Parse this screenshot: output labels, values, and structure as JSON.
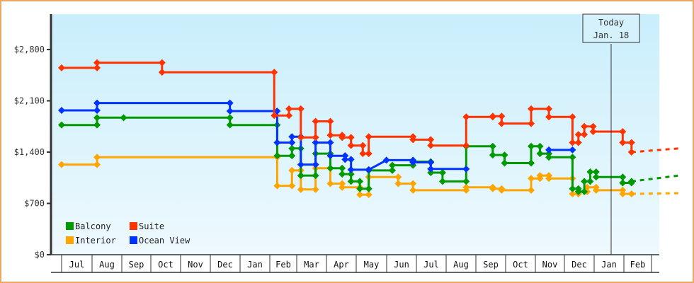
{
  "chart_data": {
    "type": "line",
    "title": "",
    "xlabel": "",
    "ylabel": "",
    "ylim": [
      0,
      3300
    ],
    "y_ticks": [
      "$0",
      "$700",
      "$1,400",
      "$2,100",
      "$2,800"
    ],
    "y_tick_values": [
      0,
      700,
      1400,
      2100,
      2800
    ],
    "x_ticks": [
      "Jul",
      "Aug",
      "Sep",
      "Oct",
      "Nov",
      "Dec",
      "Jan",
      "Feb",
      "Mar",
      "Apr",
      "May",
      "Jun",
      "Jul",
      "Aug",
      "Sep",
      "Oct",
      "Nov",
      "Dec",
      "Jan",
      "Feb"
    ],
    "grid": false,
    "legend_position": "bottom-left inside",
    "annotation": {
      "line1": "Today",
      "line2": "Jan. 18"
    },
    "step": true,
    "series": [
      {
        "name": "Balcony",
        "color": "#009900",
        "points": [
          [
            0,
            1770
          ],
          [
            1.2,
            1770
          ],
          [
            1.2,
            1870
          ],
          [
            2.1,
            1870
          ],
          [
            5.7,
            1870
          ],
          [
            5.7,
            1770
          ],
          [
            7.3,
            1770
          ],
          [
            7.3,
            1350
          ],
          [
            7.8,
            1350
          ],
          [
            7.8,
            1450
          ],
          [
            8.1,
            1450
          ],
          [
            8.1,
            1080
          ],
          [
            8.6,
            1080
          ],
          [
            8.6,
            1380
          ],
          [
            9.1,
            1380
          ],
          [
            9.1,
            1180
          ],
          [
            9.5,
            1180
          ],
          [
            9.5,
            1100
          ],
          [
            9.8,
            1100
          ],
          [
            9.8,
            1000
          ],
          [
            10.1,
            1000
          ],
          [
            10.1,
            900
          ],
          [
            10.4,
            900
          ],
          [
            10.4,
            1150
          ],
          [
            11.2,
            1150
          ],
          [
            11.2,
            1220
          ],
          [
            11.9,
            1220
          ],
          [
            11.9,
            1270
          ],
          [
            12.5,
            1270
          ],
          [
            12.5,
            1120
          ],
          [
            12.9,
            1120
          ],
          [
            12.9,
            1000
          ],
          [
            13.7,
            1000
          ],
          [
            13.7,
            1480
          ],
          [
            14.6,
            1480
          ],
          [
            14.6,
            1360
          ],
          [
            15.0,
            1360
          ],
          [
            15.0,
            1250
          ],
          [
            15.9,
            1250
          ],
          [
            15.9,
            1480
          ],
          [
            16.2,
            1480
          ],
          [
            16.2,
            1380
          ],
          [
            16.5,
            1380
          ],
          [
            16.5,
            1330
          ],
          [
            17.3,
            1330
          ],
          [
            17.3,
            900
          ],
          [
            17.5,
            900
          ],
          [
            17.5,
            860
          ],
          [
            17.7,
            860
          ],
          [
            17.7,
            1000
          ],
          [
            17.9,
            1000
          ],
          [
            17.9,
            1130
          ],
          [
            18.1,
            1130
          ],
          [
            18.1,
            1060
          ],
          [
            19.0,
            1060
          ],
          [
            19.0,
            980
          ],
          [
            19.3,
            980
          ],
          [
            19.3,
            1000
          ]
        ],
        "forecast": [
          [
            19.3,
            1000
          ],
          [
            20.9,
            1080
          ]
        ]
      },
      {
        "name": "Interior",
        "color": "#ffa500",
        "points": [
          [
            0,
            1230
          ],
          [
            1.2,
            1230
          ],
          [
            1.2,
            1330
          ],
          [
            7.3,
            1330
          ],
          [
            7.3,
            940
          ],
          [
            7.8,
            940
          ],
          [
            7.8,
            1150
          ],
          [
            8.1,
            1150
          ],
          [
            8.1,
            890
          ],
          [
            8.6,
            890
          ],
          [
            8.6,
            1180
          ],
          [
            9.1,
            1180
          ],
          [
            9.1,
            970
          ],
          [
            9.5,
            970
          ],
          [
            9.5,
            920
          ],
          [
            10.1,
            920
          ],
          [
            10.1,
            820
          ],
          [
            10.4,
            820
          ],
          [
            10.4,
            1060
          ],
          [
            11.4,
            1060
          ],
          [
            11.4,
            970
          ],
          [
            11.9,
            970
          ],
          [
            11.9,
            880
          ],
          [
            13.7,
            880
          ],
          [
            13.7,
            920
          ],
          [
            14.6,
            920
          ],
          [
            14.6,
            900
          ],
          [
            14.9,
            900
          ],
          [
            14.9,
            880
          ],
          [
            15.9,
            880
          ],
          [
            15.9,
            1040
          ],
          [
            16.2,
            1040
          ],
          [
            16.2,
            1080
          ],
          [
            16.5,
            1080
          ],
          [
            16.5,
            1040
          ],
          [
            17.3,
            1040
          ],
          [
            17.3,
            830
          ],
          [
            17.5,
            830
          ],
          [
            17.5,
            860
          ],
          [
            17.8,
            860
          ],
          [
            17.8,
            920
          ],
          [
            18.1,
            920
          ],
          [
            18.1,
            880
          ],
          [
            19.0,
            880
          ],
          [
            19.0,
            830
          ],
          [
            19.3,
            830
          ]
        ],
        "forecast": [
          [
            19.3,
            830
          ],
          [
            20.9,
            840
          ]
        ]
      },
      {
        "name": "Suite",
        "color": "#ff3300",
        "points": [
          [
            0,
            2550
          ],
          [
            1.2,
            2550
          ],
          [
            1.2,
            2620
          ],
          [
            3.4,
            2620
          ],
          [
            3.4,
            2490
          ],
          [
            7.2,
            2490
          ],
          [
            7.2,
            1900
          ],
          [
            7.7,
            1900
          ],
          [
            7.7,
            1990
          ],
          [
            8.1,
            1990
          ],
          [
            8.1,
            1600
          ],
          [
            8.6,
            1600
          ],
          [
            8.6,
            1820
          ],
          [
            9.1,
            1820
          ],
          [
            9.1,
            1630
          ],
          [
            9.5,
            1630
          ],
          [
            9.5,
            1600
          ],
          [
            9.8,
            1600
          ],
          [
            9.8,
            1490
          ],
          [
            10.2,
            1490
          ],
          [
            10.2,
            1380
          ],
          [
            10.4,
            1380
          ],
          [
            10.4,
            1610
          ],
          [
            11.9,
            1610
          ],
          [
            11.9,
            1570
          ],
          [
            12.5,
            1570
          ],
          [
            12.5,
            1490
          ],
          [
            13.7,
            1490
          ],
          [
            13.7,
            1880
          ],
          [
            14.6,
            1880
          ],
          [
            14.6,
            1890
          ],
          [
            14.9,
            1890
          ],
          [
            14.9,
            1790
          ],
          [
            15.9,
            1790
          ],
          [
            15.9,
            1990
          ],
          [
            16.5,
            1990
          ],
          [
            16.5,
            1880
          ],
          [
            17.3,
            1880
          ],
          [
            17.3,
            1530
          ],
          [
            17.5,
            1530
          ],
          [
            17.5,
            1640
          ],
          [
            17.7,
            1640
          ],
          [
            17.7,
            1750
          ],
          [
            18.0,
            1750
          ],
          [
            18.0,
            1680
          ],
          [
            19.0,
            1680
          ],
          [
            19.0,
            1530
          ],
          [
            19.3,
            1530
          ],
          [
            19.3,
            1400
          ]
        ],
        "forecast": [
          [
            19.3,
            1400
          ],
          [
            20.9,
            1450
          ]
        ]
      },
      {
        "name": "Ocean View",
        "color": "#0033ff",
        "points": [
          [
            0,
            1970
          ],
          [
            1.2,
            1970
          ],
          [
            1.2,
            2070
          ],
          [
            5.7,
            2070
          ],
          [
            5.7,
            1960
          ],
          [
            7.3,
            1960
          ],
          [
            7.3,
            1530
          ],
          [
            7.8,
            1530
          ],
          [
            7.8,
            1610
          ],
          [
            8.1,
            1610
          ],
          [
            8.1,
            1230
          ],
          [
            8.6,
            1230
          ],
          [
            8.6,
            1530
          ],
          [
            9.1,
            1530
          ],
          [
            9.1,
            1350
          ],
          [
            9.6,
            1350
          ],
          [
            9.6,
            1300
          ],
          [
            9.8,
            1300
          ],
          [
            9.8,
            1160
          ],
          [
            10.4,
            1160
          ],
          [
            10.4,
            1160
          ],
          [
            11.0,
            1290
          ],
          [
            11.9,
            1290
          ],
          [
            11.9,
            1260
          ],
          [
            12.5,
            1260
          ],
          [
            12.5,
            1170
          ],
          [
            13.7,
            1170
          ]
        ],
        "segment_2": [
          [
            16.5,
            1430
          ],
          [
            17.3,
            1430
          ]
        ]
      }
    ]
  },
  "legend": [
    {
      "label": "Balcony",
      "color": "#009900"
    },
    {
      "label": "Suite",
      "color": "#ff3300"
    },
    {
      "label": "Interior",
      "color": "#ffa500"
    },
    {
      "label": "Ocean View",
      "color": "#0033ff"
    }
  ],
  "today_marker": {
    "line1": "Today",
    "line2": "Jan. 18"
  }
}
